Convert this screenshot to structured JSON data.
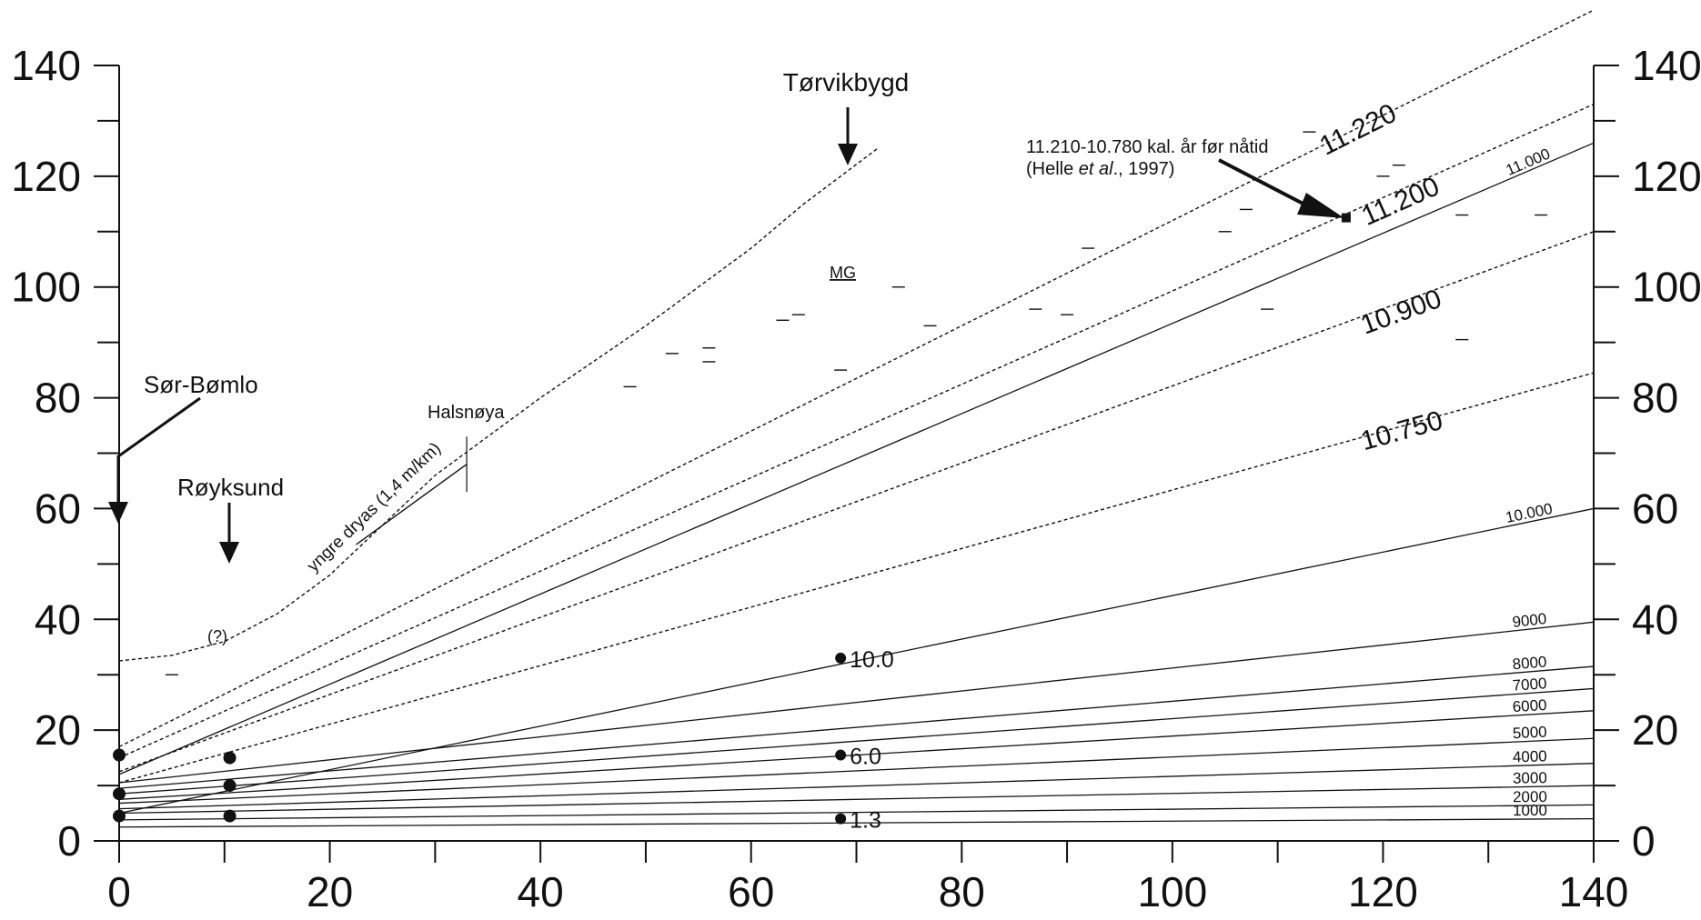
{
  "chart_data": {
    "type": "line",
    "xlim": [
      0,
      140
    ],
    "ylim": [
      0,
      140
    ],
    "x_ticks": [
      0,
      20,
      40,
      60,
      80,
      100,
      120,
      140
    ],
    "y_ticks": [
      0,
      20,
      40,
      60,
      80,
      100,
      120,
      140
    ],
    "grid": false,
    "series": [
      {
        "name": "11.000",
        "style": "solid",
        "x": [
          0,
          140
        ],
        "y": [
          12,
          126
        ]
      },
      {
        "name": "10.000",
        "style": "solid",
        "x": [
          0,
          140
        ],
        "y": [
          5,
          60
        ]
      },
      {
        "name": "9000",
        "style": "solid",
        "x": [
          0,
          140
        ],
        "y": [
          10.5,
          39.5
        ]
      },
      {
        "name": "8000",
        "style": "solid",
        "x": [
          0,
          140
        ],
        "y": [
          9.5,
          31.5
        ]
      },
      {
        "name": "7000",
        "style": "solid",
        "x": [
          0,
          140
        ],
        "y": [
          8.5,
          27.5
        ]
      },
      {
        "name": "6000",
        "style": "solid",
        "x": [
          0,
          140
        ],
        "y": [
          7.5,
          23.5
        ]
      },
      {
        "name": "5000",
        "style": "solid",
        "x": [
          0,
          140
        ],
        "y": [
          6.8,
          18.5
        ]
      },
      {
        "name": "4000",
        "style": "solid",
        "x": [
          0,
          140
        ],
        "y": [
          5.8,
          14
        ]
      },
      {
        "name": "3000",
        "style": "solid",
        "x": [
          0,
          140
        ],
        "y": [
          5,
          10
        ]
      },
      {
        "name": "2000",
        "style": "solid",
        "x": [
          0,
          140
        ],
        "y": [
          3.8,
          6.5
        ]
      },
      {
        "name": "1000",
        "style": "solid",
        "x": [
          0,
          140
        ],
        "y": [
          2.5,
          4
        ]
      },
      {
        "name": "11.220",
        "style": "dashed",
        "x": [
          0,
          140
        ],
        "y": [
          17,
          150
        ]
      },
      {
        "name": "11.200",
        "style": "dashed",
        "x": [
          0,
          140
        ],
        "y": [
          15,
          133
        ]
      },
      {
        "name": "10.900",
        "style": "dashed",
        "x": [
          0,
          140
        ],
        "y": [
          12.5,
          110
        ]
      },
      {
        "name": "10.750",
        "style": "dashed",
        "x": [
          0,
          140
        ],
        "y": [
          10.5,
          84.5
        ]
      },
      {
        "name": "yngre dryas",
        "style": "dashed",
        "x": [
          0,
          5,
          10,
          15,
          20,
          30,
          40,
          50,
          60,
          65,
          72
        ],
        "y": [
          32.5,
          33.5,
          36,
          41,
          48,
          66,
          80,
          93,
          107,
          115,
          125
        ]
      }
    ],
    "points": [
      {
        "x": 0,
        "y": 15.5
      },
      {
        "x": 0,
        "y": 8.5
      },
      {
        "x": 0,
        "y": 4.5
      },
      {
        "x": 10.5,
        "y": 15
      },
      {
        "x": 10.5,
        "y": 10
      },
      {
        "x": 10.5,
        "y": 4.5
      },
      {
        "x": 68.5,
        "y": 33,
        "label": "10.0"
      },
      {
        "x": 68.5,
        "y": 15.5,
        "label": "6.0"
      },
      {
        "x": 68.5,
        "y": 4,
        "label": "1.3"
      }
    ],
    "square_point": {
      "x": 116.5,
      "y": 112.5
    },
    "short_marks": [
      [
        5,
        30
      ],
      [
        48.5,
        82
      ],
      [
        52.5,
        88
      ],
      [
        56,
        89
      ],
      [
        56,
        86.5
      ],
      [
        63,
        94
      ],
      [
        64.5,
        95
      ],
      [
        68.5,
        85
      ],
      [
        74,
        100
      ],
      [
        77,
        93
      ],
      [
        87,
        96
      ],
      [
        90,
        95
      ],
      [
        92,
        107
      ],
      [
        105,
        110
      ],
      [
        107,
        114
      ],
      [
        109,
        96
      ],
      [
        113,
        128
      ],
      [
        120,
        120
      ],
      [
        121.5,
        122
      ],
      [
        127.5,
        90.5
      ],
      [
        127.5,
        113
      ],
      [
        135,
        113
      ]
    ],
    "segment_halsnoya": [
      [
        22.5,
        53.5
      ],
      [
        33,
        68
      ]
    ],
    "halsnoya_tick": [
      [
        33,
        63
      ],
      [
        33,
        73
      ]
    ],
    "annotations": {
      "torvikbygd": "Tørvikbygd",
      "sor_bomlo": "Sør-Bømlo",
      "roykesund": "Røyksund",
      "halsnoya": "Halsnøya",
      "yngre_dryas": "yngre dryas (1,4 m/km)",
      "mg": "MG",
      "question": "(?)",
      "ref_line1": "11.210-10.780 kal. år før nåtid",
      "ref_line2_a": "(Helle ",
      "ref_line2_b": "et al",
      "ref_line2_c": "., 1997)"
    },
    "colors": {
      "ink": "#111111",
      "background": "#ffffff"
    }
  }
}
